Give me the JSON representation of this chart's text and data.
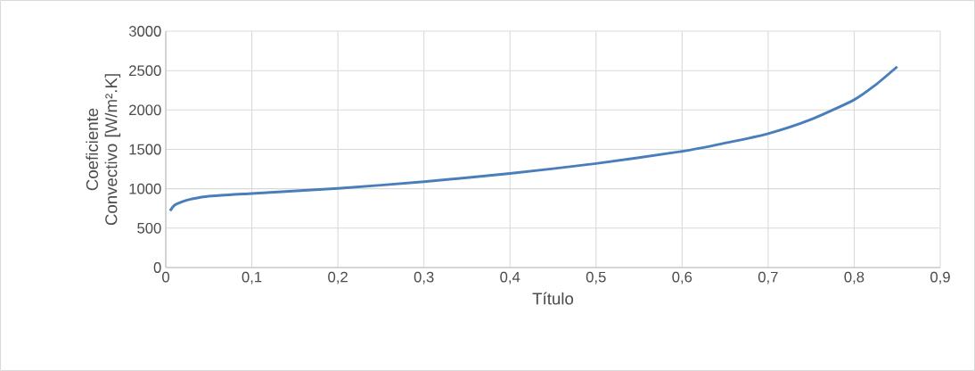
{
  "chart_data": {
    "type": "line",
    "xlabel": "Título",
    "ylabel": "Coeficiente Convectivo [W/m².K]",
    "x": [
      0.005,
      0.01,
      0.02,
      0.03,
      0.05,
      0.1,
      0.2,
      0.3,
      0.4,
      0.5,
      0.6,
      0.65,
      0.7,
      0.75,
      0.8,
      0.825,
      0.85
    ],
    "series": [
      {
        "color": "#4a7ebb",
        "values": [
          720,
          790,
          840,
          870,
          905,
          940,
          1005,
          1090,
          1195,
          1320,
          1475,
          1580,
          1700,
          1880,
          2130,
          2320,
          2550
        ]
      }
    ],
    "xlim": [
      0,
      0.9
    ],
    "xticks": [
      {
        "value": 0,
        "label": "0"
      },
      {
        "value": 0.1,
        "label": "0,1"
      },
      {
        "value": 0.2,
        "label": "0,2"
      },
      {
        "value": 0.3,
        "label": "0,3"
      },
      {
        "value": 0.4,
        "label": "0,4"
      },
      {
        "value": 0.5,
        "label": "0,5"
      },
      {
        "value": 0.6,
        "label": "0,6"
      },
      {
        "value": 0.7,
        "label": "0,7"
      },
      {
        "value": 0.8,
        "label": "0,8"
      },
      {
        "value": 0.9,
        "label": "0,9"
      }
    ],
    "ylim": [
      0,
      3000
    ],
    "yticks": [
      0,
      500,
      1000,
      1500,
      2000,
      2500,
      3000
    ],
    "grid": true,
    "marker": "none",
    "line_style": "solid"
  }
}
